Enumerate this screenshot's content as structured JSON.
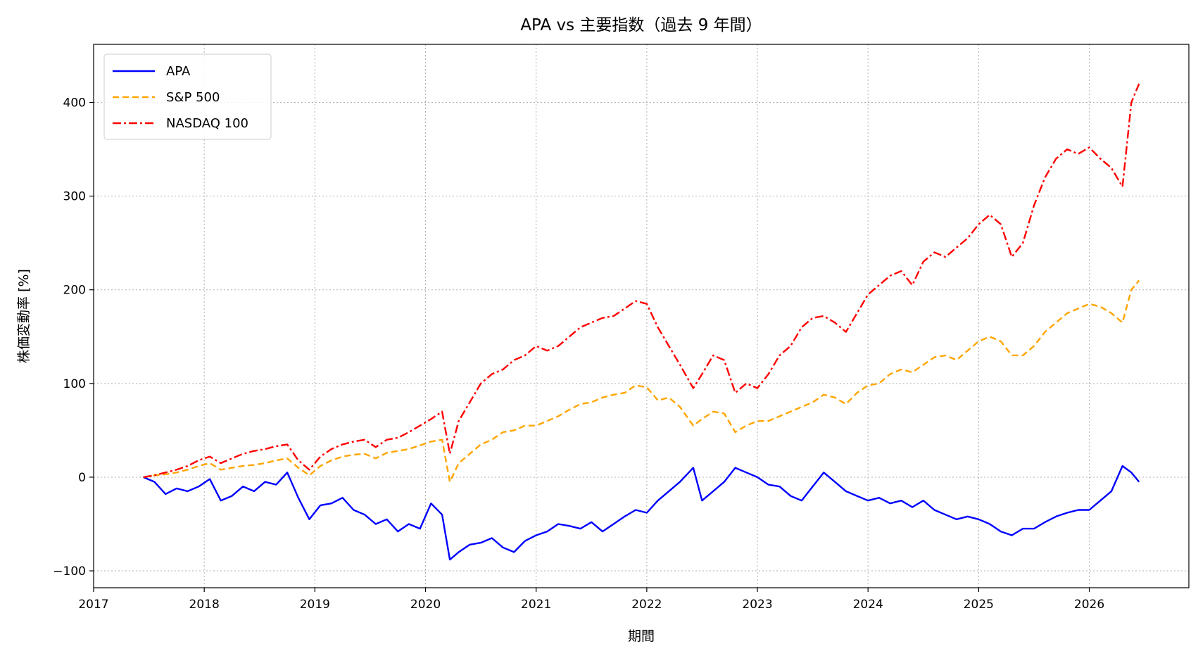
{
  "chart_data": {
    "type": "line",
    "title": "APA vs 主要指数（過去 9 年間）",
    "xlabel": "期間",
    "ylabel": "株価変動率 [%]",
    "xlim": [
      2017.0,
      2026.9
    ],
    "ylim": [
      -118,
      462
    ],
    "x_ticks": [
      "2017",
      "2018",
      "2019",
      "2020",
      "2021",
      "2022",
      "2023",
      "2024",
      "2025",
      "2026"
    ],
    "y_ticks": [
      -100,
      0,
      100,
      200,
      300,
      400
    ],
    "grid": true,
    "legend_position": "top-left",
    "series": [
      {
        "name": "APA",
        "color": "#0000ff",
        "style": "solid",
        "x": [
          2017.45,
          2017.55,
          2017.65,
          2017.75,
          2017.85,
          2017.95,
          2018.05,
          2018.15,
          2018.25,
          2018.35,
          2018.45,
          2018.55,
          2018.65,
          2018.75,
          2018.85,
          2018.95,
          2019.05,
          2019.15,
          2019.25,
          2019.35,
          2019.45,
          2019.55,
          2019.65,
          2019.75,
          2019.85,
          2019.95,
          2020.05,
          2020.15,
          2020.22,
          2020.3,
          2020.4,
          2020.5,
          2020.6,
          2020.7,
          2020.8,
          2020.9,
          2021.0,
          2021.1,
          2021.2,
          2021.3,
          2021.4,
          2021.5,
          2021.6,
          2021.7,
          2021.8,
          2021.9,
          2022.0,
          2022.1,
          2022.2,
          2022.3,
          2022.42,
          2022.5,
          2022.6,
          2022.7,
          2022.8,
          2022.9,
          2023.0,
          2023.1,
          2023.2,
          2023.3,
          2023.4,
          2023.5,
          2023.6,
          2023.7,
          2023.8,
          2023.9,
          2024.0,
          2024.1,
          2024.2,
          2024.3,
          2024.4,
          2024.5,
          2024.6,
          2024.7,
          2024.8,
          2024.9,
          2025.0,
          2025.1,
          2025.2,
          2025.3,
          2025.4,
          2025.5,
          2025.6,
          2025.7,
          2025.8,
          2025.9,
          2026.0,
          2026.1,
          2026.2,
          2026.3,
          2026.38,
          2026.45
        ],
        "values": [
          0,
          -5,
          -18,
          -12,
          -15,
          -10,
          -2,
          -25,
          -20,
          -10,
          -15,
          -5,
          -8,
          5,
          -22,
          -45,
          -30,
          -28,
          -22,
          -35,
          -40,
          -50,
          -45,
          -58,
          -50,
          -55,
          -28,
          -40,
          -88,
          -80,
          -72,
          -70,
          -65,
          -75,
          -80,
          -68,
          -62,
          -58,
          -50,
          -52,
          -55,
          -48,
          -58,
          -50,
          -42,
          -35,
          -38,
          -25,
          -15,
          -5,
          10,
          -25,
          -15,
          -5,
          10,
          5,
          0,
          -8,
          -10,
          -20,
          -25,
          -10,
          5,
          -5,
          -15,
          -20,
          -25,
          -22,
          -28,
          -25,
          -32,
          -25,
          -35,
          -40,
          -45,
          -42,
          -45,
          -50,
          -58,
          -62,
          -55,
          -55,
          -48,
          -42,
          -38,
          -35,
          -35,
          -25,
          -15,
          12,
          5,
          -5
        ]
      },
      {
        "name": "S&P 500",
        "color": "#ffa500",
        "style": "dashed",
        "x": [
          2017.45,
          2017.55,
          2017.65,
          2017.75,
          2017.85,
          2017.95,
          2018.05,
          2018.15,
          2018.25,
          2018.35,
          2018.45,
          2018.55,
          2018.65,
          2018.75,
          2018.85,
          2018.95,
          2019.05,
          2019.15,
          2019.25,
          2019.35,
          2019.45,
          2019.55,
          2019.65,
          2019.75,
          2019.85,
          2019.95,
          2020.05,
          2020.15,
          2020.22,
          2020.3,
          2020.4,
          2020.5,
          2020.6,
          2020.7,
          2020.8,
          2020.9,
          2021.0,
          2021.1,
          2021.2,
          2021.3,
          2021.4,
          2021.5,
          2021.6,
          2021.7,
          2021.8,
          2021.9,
          2022.0,
          2022.1,
          2022.2,
          2022.3,
          2022.42,
          2022.5,
          2022.6,
          2022.7,
          2022.8,
          2022.9,
          2023.0,
          2023.1,
          2023.2,
          2023.3,
          2023.4,
          2023.5,
          2023.6,
          2023.7,
          2023.8,
          2023.9,
          2024.0,
          2024.1,
          2024.2,
          2024.3,
          2024.4,
          2024.5,
          2024.6,
          2024.7,
          2024.8,
          2024.9,
          2025.0,
          2025.1,
          2025.2,
          2025.3,
          2025.4,
          2025.5,
          2025.6,
          2025.7,
          2025.8,
          2025.9,
          2026.0,
          2026.1,
          2026.2,
          2026.3,
          2026.38,
          2026.45
        ],
        "values": [
          0,
          2,
          3,
          5,
          8,
          12,
          15,
          8,
          10,
          12,
          13,
          15,
          18,
          20,
          10,
          2,
          12,
          18,
          22,
          24,
          25,
          20,
          26,
          28,
          30,
          34,
          38,
          40,
          -5,
          15,
          25,
          35,
          40,
          48,
          50,
          55,
          55,
          60,
          65,
          72,
          78,
          80,
          85,
          88,
          90,
          98,
          96,
          82,
          85,
          75,
          55,
          62,
          70,
          68,
          48,
          55,
          60,
          60,
          65,
          70,
          75,
          80,
          88,
          85,
          78,
          90,
          98,
          100,
          110,
          115,
          112,
          120,
          128,
          130,
          125,
          135,
          145,
          150,
          145,
          130,
          130,
          140,
          155,
          165,
          175,
          180,
          185,
          182,
          175,
          165,
          200,
          210
        ]
      },
      {
        "name": "NASDAQ 100",
        "color": "#ff0000",
        "style": "dashdot",
        "x": [
          2017.45,
          2017.55,
          2017.65,
          2017.75,
          2017.85,
          2017.95,
          2018.05,
          2018.15,
          2018.25,
          2018.35,
          2018.45,
          2018.55,
          2018.65,
          2018.75,
          2018.85,
          2018.95,
          2019.05,
          2019.15,
          2019.25,
          2019.35,
          2019.45,
          2019.55,
          2019.65,
          2019.75,
          2019.85,
          2019.95,
          2020.05,
          2020.15,
          2020.22,
          2020.3,
          2020.4,
          2020.5,
          2020.6,
          2020.7,
          2020.8,
          2020.9,
          2021.0,
          2021.1,
          2021.2,
          2021.3,
          2021.4,
          2021.5,
          2021.6,
          2021.7,
          2021.8,
          2021.9,
          2022.0,
          2022.1,
          2022.2,
          2022.3,
          2022.42,
          2022.5,
          2022.6,
          2022.7,
          2022.8,
          2022.9,
          2023.0,
          2023.1,
          2023.2,
          2023.3,
          2023.4,
          2023.5,
          2023.6,
          2023.7,
          2023.8,
          2023.9,
          2024.0,
          2024.1,
          2024.2,
          2024.3,
          2024.4,
          2024.5,
          2024.6,
          2024.7,
          2024.8,
          2024.9,
          2025.0,
          2025.1,
          2025.2,
          2025.3,
          2025.4,
          2025.5,
          2025.6,
          2025.7,
          2025.8,
          2025.9,
          2026.0,
          2026.1,
          2026.2,
          2026.3,
          2026.38,
          2026.45
        ],
        "values": [
          0,
          2,
          5,
          8,
          12,
          18,
          22,
          15,
          20,
          25,
          28,
          30,
          33,
          35,
          18,
          8,
          22,
          30,
          35,
          38,
          40,
          32,
          40,
          42,
          48,
          55,
          62,
          70,
          25,
          60,
          80,
          100,
          110,
          115,
          125,
          130,
          140,
          135,
          140,
          150,
          160,
          165,
          170,
          172,
          180,
          188,
          185,
          160,
          140,
          120,
          95,
          110,
          130,
          125,
          90,
          100,
          95,
          110,
          130,
          140,
          160,
          170,
          172,
          165,
          155,
          175,
          195,
          205,
          215,
          220,
          205,
          230,
          240,
          235,
          245,
          255,
          270,
          280,
          270,
          235,
          250,
          290,
          320,
          340,
          350,
          345,
          352,
          340,
          330,
          310,
          400,
          420
        ]
      }
    ]
  }
}
